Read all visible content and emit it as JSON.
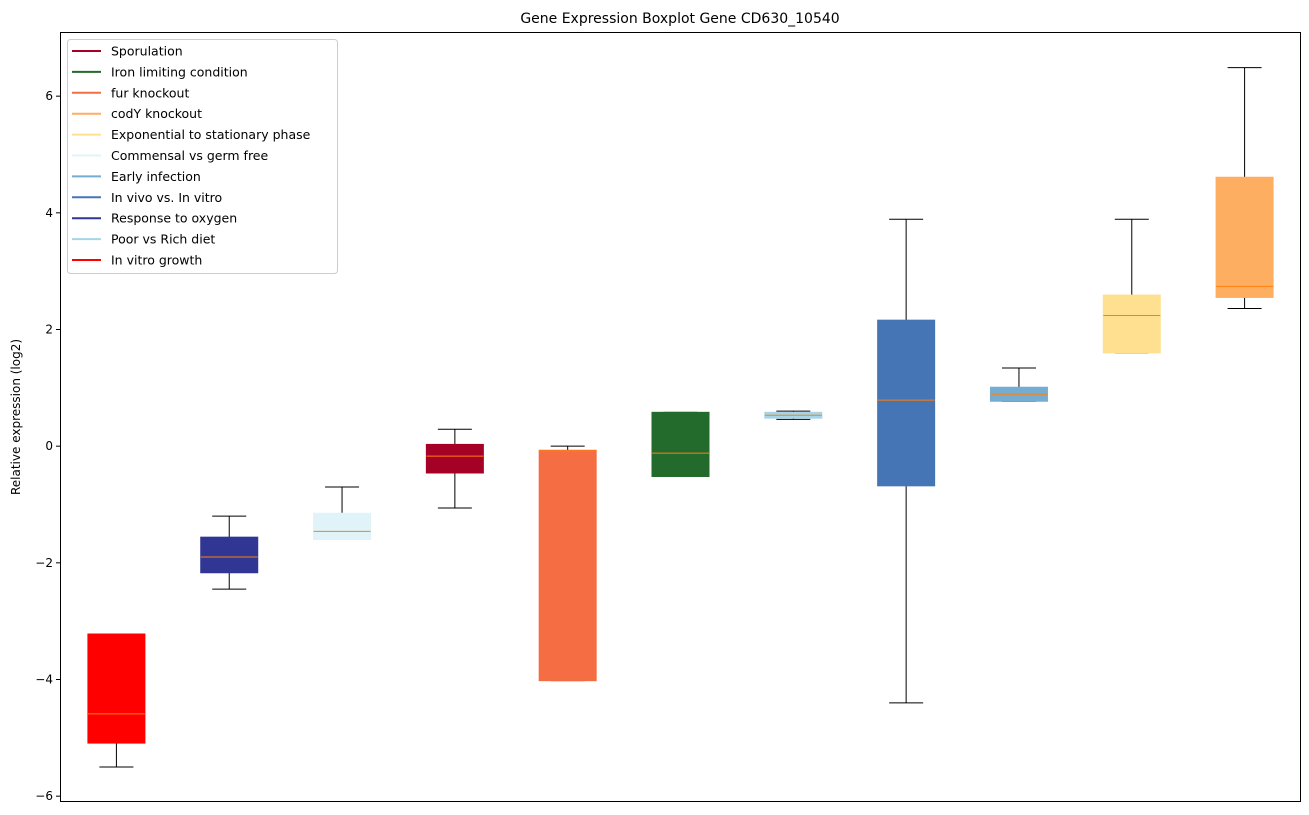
{
  "chart_data": {
    "type": "boxplot",
    "title": "Gene Expression Boxplot Gene CD630_10540",
    "xlabel": "",
    "ylabel": "Relative expression (log2)",
    "ylim": [
      -6.1,
      7.1
    ],
    "yticks": [
      -6,
      -4,
      -2,
      0,
      2,
      4,
      6
    ],
    "ytick_labels": [
      "−6",
      "−4",
      "−2",
      "0",
      "2",
      "4",
      "6"
    ],
    "grid": false,
    "legend_position": "top-left",
    "median_color": "#ff7f0e",
    "legend": [
      {
        "label": "Sporulation",
        "color": "#a50026"
      },
      {
        "label": "Iron limiting condition",
        "color": "#226b2c"
      },
      {
        "label": "fur knockout",
        "color": "#f46d43"
      },
      {
        "label": "codY knockout",
        "color": "#fdae61"
      },
      {
        "label": "Exponential to stationary phase",
        "color": "#fee090"
      },
      {
        "label": "Commensal vs germ free",
        "color": "#e0f3f8"
      },
      {
        "label": "Early infection",
        "color": "#74add1"
      },
      {
        "label": "In vivo vs. In vitro",
        "color": "#4575b4"
      },
      {
        "label": "Response to oxygen",
        "color": "#313695"
      },
      {
        "label": "Poor vs Rich diet",
        "color": "#a6d4e8"
      },
      {
        "label": "In vitro growth",
        "color": "#ff0000"
      }
    ],
    "boxes": [
      {
        "group": "In vitro growth",
        "color": "#ff0000",
        "whislo": -5.5,
        "q1": -5.09,
        "median": -4.59,
        "q3": -3.22,
        "whishi": -3.22
      },
      {
        "group": "Response to oxygen",
        "color": "#313695",
        "whislo": -2.45,
        "q1": -2.17,
        "median": -1.9,
        "q3": -1.56,
        "whishi": -1.2
      },
      {
        "group": "Commensal vs germ free",
        "color": "#e0f3f8",
        "whislo": -1.6,
        "q1": -1.6,
        "median": -1.46,
        "q3": -1.15,
        "whishi": -0.7
      },
      {
        "group": "Sporulation",
        "color": "#a50026",
        "whislo": -1.06,
        "q1": -0.46,
        "median": -0.17,
        "q3": 0.03,
        "whishi": 0.29
      },
      {
        "group": "fur knockout",
        "color": "#f46d43",
        "whislo": -4.02,
        "q1": -4.02,
        "median": -0.08,
        "q3": -0.07,
        "whishi": 0.0
      },
      {
        "group": "Iron limiting condition",
        "color": "#226b2c",
        "whislo": -0.52,
        "q1": -0.52,
        "median": -0.12,
        "q3": 0.58,
        "whishi": 0.58
      },
      {
        "group": "Poor vs Rich diet",
        "color": "#a6d4e8",
        "whislo": 0.46,
        "q1": 0.48,
        "median": 0.53,
        "q3": 0.58,
        "whishi": 0.6
      },
      {
        "group": "In vivo vs. In vitro",
        "color": "#4575b4",
        "whislo": -4.4,
        "q1": -0.68,
        "median": 0.79,
        "q3": 2.16,
        "whishi": 3.89
      },
      {
        "group": "Early infection",
        "color": "#74add1",
        "whislo": 0.77,
        "q1": 0.77,
        "median": 0.89,
        "q3": 1.01,
        "whishi": 1.34
      },
      {
        "group": "Exponential to stationary phase",
        "color": "#fee090",
        "whislo": 1.6,
        "q1": 1.6,
        "median": 2.24,
        "q3": 2.59,
        "whishi": 3.89
      },
      {
        "group": "codY knockout",
        "color": "#fdae61",
        "whislo": 2.36,
        "q1": 2.55,
        "median": 2.74,
        "q3": 4.61,
        "whishi": 6.49
      }
    ]
  }
}
